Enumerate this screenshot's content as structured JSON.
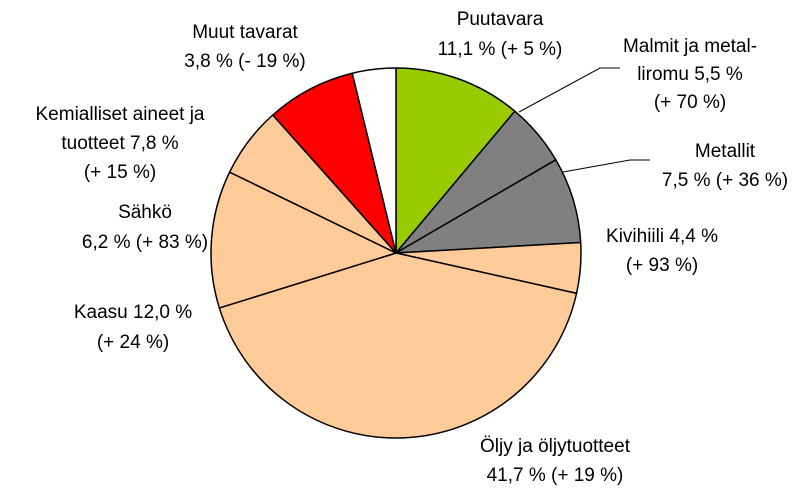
{
  "chart_data": {
    "type": "pie",
    "labels": [
      [
        "Puutavara",
        "11,1 % (+ 5 %)"
      ],
      [
        "Malmit ja metal-",
        "liromu 5,5 %",
        "(+ 70 %)"
      ],
      [
        "Metallit",
        "7,5 % (+ 36 %)"
      ],
      [
        "Kivihiili 4,4 %",
        "(+ 93 %)"
      ],
      [
        "Öljy ja öljytuotteet",
        "41,7 % (+ 19 %)"
      ],
      [
        "Kaasu 12,0 %",
        "(+ 24 %)"
      ],
      [
        "Sähkö",
        "6,2 % (+ 83 %)"
      ],
      [
        "Kemialliset aineet ja",
        "tuotteet 7,8 %",
        "(+ 15 %)"
      ],
      [
        "Muut tavarat",
        "3,8 % (- 19 %)"
      ]
    ],
    "values": [
      11.1,
      5.5,
      7.5,
      4.4,
      41.7,
      12.0,
      6.2,
      7.8,
      3.8
    ],
    "colors": [
      "#99cc00",
      "#808080",
      "#808080",
      "#ffcc99",
      "#ffcc99",
      "#ffcc99",
      "#ffcc99",
      "#ff0000",
      "#ffffff"
    ]
  }
}
